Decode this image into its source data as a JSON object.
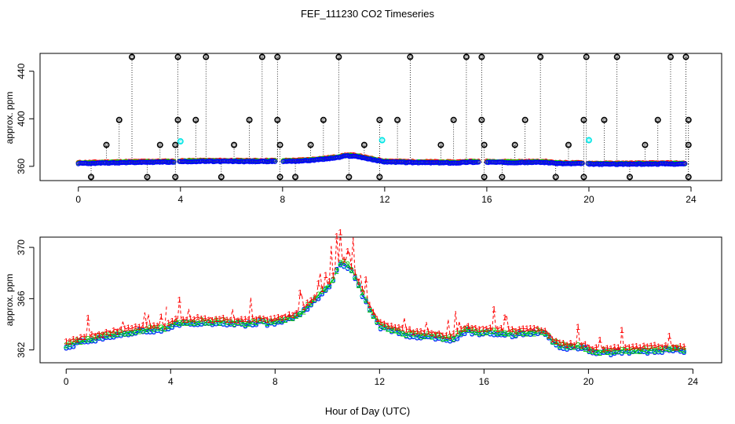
{
  "figure_title": "FEF_111230  CO2 Timeseries",
  "xlabel": "Hour of Day (UTC)",
  "chart_data": [
    {
      "type": "scatter",
      "title": "FEF_111230  CO2 Timeseries",
      "xlabel": "",
      "ylabel": "approx. ppm",
      "xlim": [
        -1.5,
        25.2
      ],
      "ylim": [
        348,
        455
      ],
      "x_ticks": [
        0,
        4,
        8,
        12,
        16,
        20,
        24
      ],
      "y_ticks": [
        360,
        400,
        440
      ],
      "grid": false,
      "series": [
        {
          "name": "pinned maxima (black o)",
          "color": "#000000",
          "marker": "o",
          "points": [
            [
              2.1,
              452
            ],
            [
              3.9,
              452
            ],
            [
              5.0,
              452
            ],
            [
              7.2,
              452
            ],
            [
              7.8,
              452
            ],
            [
              10.2,
              452
            ],
            [
              13.0,
              452
            ],
            [
              15.2,
              452
            ],
            [
              15.8,
              452
            ],
            [
              18.1,
              452
            ],
            [
              19.9,
              452
            ],
            [
              21.1,
              452
            ],
            [
              23.2,
              452
            ],
            [
              23.8,
              452
            ],
            [
              1.6,
              399
            ],
            [
              3.9,
              399
            ],
            [
              4.6,
              399
            ],
            [
              6.7,
              399
            ],
            [
              7.8,
              399
            ],
            [
              9.6,
              399
            ],
            [
              11.8,
              399
            ],
            [
              12.5,
              399
            ],
            [
              14.7,
              399
            ],
            [
              15.8,
              399
            ],
            [
              17.5,
              399
            ],
            [
              19.8,
              399
            ],
            [
              20.6,
              399
            ],
            [
              22.7,
              399
            ],
            [
              23.9,
              399
            ],
            [
              1.1,
              378
            ],
            [
              3.2,
              378
            ],
            [
              3.8,
              378
            ],
            [
              6.1,
              378
            ],
            [
              7.9,
              378
            ],
            [
              9.1,
              378
            ],
            [
              11.2,
              378
            ],
            [
              14.2,
              378
            ],
            [
              15.9,
              378
            ],
            [
              17.1,
              378
            ],
            [
              19.2,
              378
            ],
            [
              22.2,
              378
            ],
            [
              23.9,
              378
            ]
          ]
        },
        {
          "name": "pinned minima (black o)",
          "color": "#000000",
          "marker": "o",
          "points": [
            [
              0.5,
              351
            ],
            [
              2.7,
              351
            ],
            [
              3.8,
              351
            ],
            [
              5.6,
              351
            ],
            [
              7.9,
              351
            ],
            [
              8.5,
              351
            ],
            [
              10.6,
              351
            ],
            [
              11.8,
              351
            ],
            [
              15.9,
              351
            ],
            [
              16.6,
              351
            ],
            [
              18.7,
              351
            ],
            [
              19.8,
              351
            ],
            [
              21.6,
              351
            ],
            [
              23.9,
              351
            ]
          ]
        },
        {
          "name": "cyan points",
          "color": "#00e5e5",
          "marker": "o",
          "points": [
            [
              4.0,
              381
            ],
            [
              11.9,
              382
            ],
            [
              20.0,
              382
            ]
          ]
        }
      ]
    },
    {
      "type": "line",
      "title": "",
      "xlabel": "Hour of Day (UTC)",
      "ylabel": "approx. ppm",
      "xlim": [
        -1.0,
        25.1
      ],
      "ylim": [
        361.0,
        370.8
      ],
      "x_ticks": [
        0,
        4,
        8,
        12,
        16,
        20,
        24
      ],
      "y_ticks": [
        362,
        366,
        370
      ],
      "grid": false,
      "series_profile": {
        "x": [
          0.0,
          0.6,
          1.2,
          2.0,
          3.0,
          3.8,
          4.2,
          5.0,
          6.0,
          7.0,
          7.5,
          7.9,
          8.2,
          8.6,
          9.0,
          9.4,
          9.8,
          10.2,
          10.5,
          10.8,
          11.0,
          11.3,
          11.6,
          12.0,
          13.0,
          14.0,
          14.8,
          15.3,
          15.8,
          16.0,
          17.0,
          17.8,
          18.3,
          18.6,
          19.0,
          19.9,
          20.1,
          21.0,
          22.0,
          23.0,
          23.8
        ],
        "y": [
          362.3,
          362.6,
          362.9,
          363.2,
          363.5,
          363.6,
          364.0,
          364.1,
          364.1,
          364.0,
          364.2,
          364.0,
          364.2,
          364.4,
          364.8,
          365.6,
          366.4,
          367.4,
          368.8,
          368.5,
          368.0,
          366.5,
          365.2,
          363.8,
          363.2,
          363.0,
          362.8,
          363.5,
          363.3,
          363.4,
          363.2,
          363.3,
          363.3,
          362.6,
          362.2,
          362.1,
          361.8,
          361.8,
          361.9,
          362.0,
          361.9
        ]
      },
      "series": [
        {
          "name": "1",
          "color": "#ff0000",
          "marker": "1",
          "offset": 0.35
        },
        {
          "name": "2",
          "color": "#00cc00",
          "marker": "2",
          "offset": 0.12
        },
        {
          "name": "3",
          "color": "#0000ff",
          "marker": "3",
          "offset": 0.0
        }
      ]
    }
  ]
}
